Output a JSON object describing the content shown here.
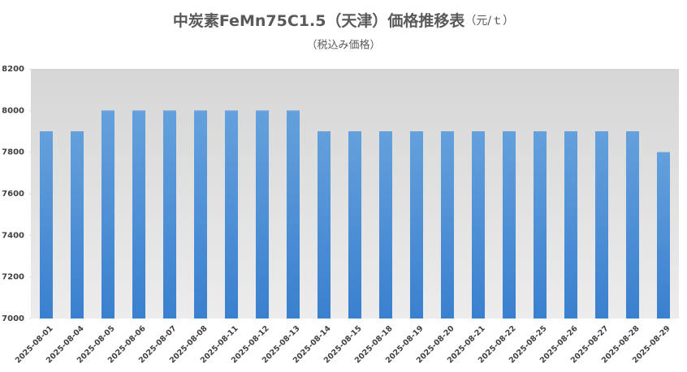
{
  "chart_data": {
    "type": "bar",
    "title": "中炭素FeMn75C1.5（天津）価格推移表",
    "unit": "（元/ｔ）",
    "subtitle": "（税込み価格）",
    "categories": [
      "2025-08-01",
      "2025-08-04",
      "2025-08-05",
      "2025-08-06",
      "2025-08-07",
      "2025-08-08",
      "2025-08-11",
      "2025-08-12",
      "2025-08-13",
      "2025-08-14",
      "2025-08-15",
      "2025-08-18",
      "2025-08-19",
      "2025-08-20",
      "2025-08-21",
      "2025-08-22",
      "2025-08-25",
      "2025-08-26",
      "2025-08-27",
      "2025-08-28",
      "2025-08-29"
    ],
    "values": [
      7900,
      7900,
      8000,
      8000,
      8000,
      8000,
      8000,
      8000,
      8000,
      7900,
      7900,
      7900,
      7900,
      7900,
      7900,
      7900,
      7900,
      7900,
      7900,
      7900,
      7800
    ],
    "color": "#4a8fd6",
    "ylim": [
      7000,
      8200
    ],
    "yticks": [
      7000,
      7200,
      7400,
      7600,
      7800,
      8000,
      8200
    ]
  }
}
